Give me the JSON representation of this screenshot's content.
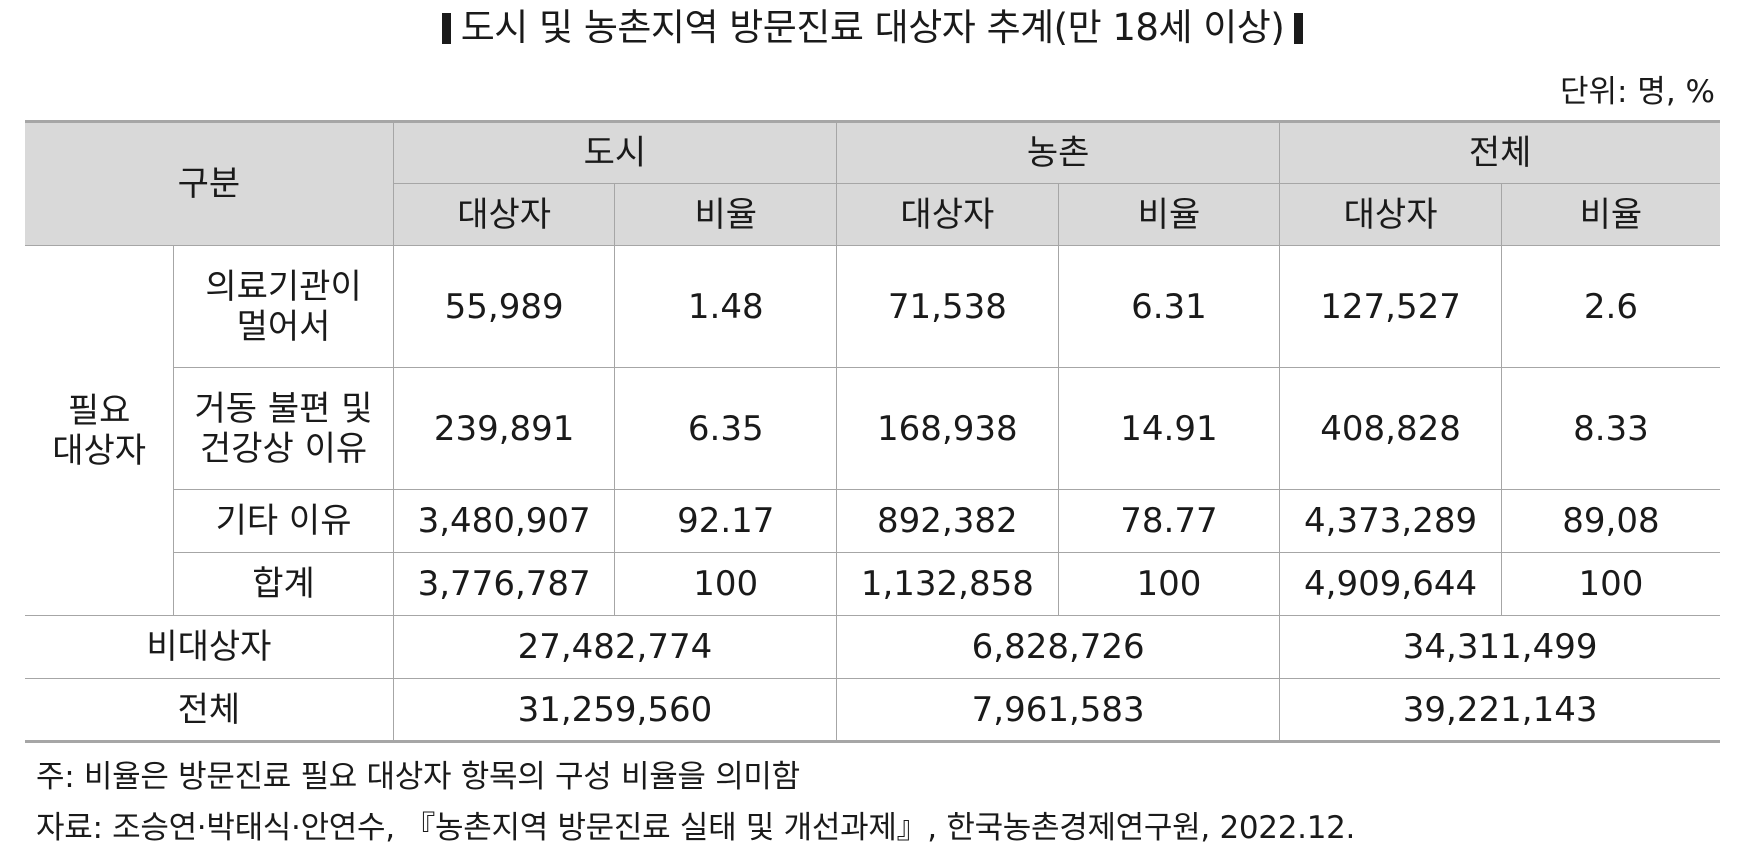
{
  "title": "도시 및 농촌지역 방문진료 대상자 추계(만 18세 이상)",
  "unit": "단위: 명, %",
  "header": {
    "category": "구분",
    "groups": [
      "도시",
      "농촌",
      "전체"
    ],
    "subcols": [
      "대상자",
      "비율",
      "대상자",
      "비율",
      "대상자",
      "비율"
    ]
  },
  "needed_group_label": "필요\n대상자",
  "rows": [
    {
      "label": "의료기관이\n멀어서",
      "values": [
        "55,989",
        "1.48",
        "71,538",
        "6.31",
        "127,527",
        "2.6"
      ]
    },
    {
      "label": "거동 불편 및\n건강상 이유",
      "values": [
        "239,891",
        "6.35",
        "168,938",
        "14.91",
        "408,828",
        "8.33"
      ]
    },
    {
      "label": "기타 이유",
      "values": [
        "3,480,907",
        "92.17",
        "892,382",
        "78.77",
        "4,373,289",
        "89,08"
      ]
    },
    {
      "label": "합계",
      "values": [
        "3,776,787",
        "100",
        "1,132,858",
        "100",
        "4,909,644",
        "100"
      ]
    }
  ],
  "non_target": {
    "label": "비대상자",
    "values": [
      "27,482,774",
      "6,828,726",
      "34,311,499"
    ]
  },
  "total": {
    "label": "전체",
    "values": [
      "31,259,560",
      "7,961,583",
      "39,221,143"
    ]
  },
  "notes": {
    "note": "주: 비율은 방문진료 필요 대상자 항목의 구성 비율을 의미함",
    "source": "자료: 조승연·박태식·안연수, 『농촌지역 방문진료 실태 및 개선과제』, 한국농촌경제연구원, 2022.12."
  }
}
